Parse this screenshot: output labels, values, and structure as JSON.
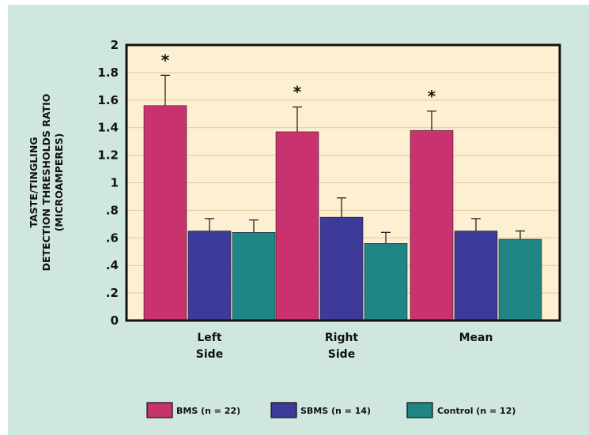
{
  "chart_data": {
    "type": "bar",
    "ylabel_lines": [
      "TASTE/TINGLING",
      "DETECTION THRESHOLDS RATIO",
      "(MICROAMPERES)"
    ],
    "categories": [
      [
        "Left",
        "Side"
      ],
      [
        "Right",
        "Side"
      ],
      [
        "Mean"
      ]
    ],
    "y_ticks": [
      "0",
      ".2",
      ".4",
      ".6",
      ".8",
      "1",
      "1.2",
      "1.4",
      "1.6",
      "1.8",
      "2"
    ],
    "ylim": [
      0,
      2
    ],
    "series": [
      {
        "name": "BMS (n = 22)",
        "color": "#c8336f",
        "values": [
          1.56,
          1.37,
          1.38
        ],
        "errors": [
          0.22,
          0.18,
          0.14
        ],
        "significant": [
          true,
          true,
          true
        ]
      },
      {
        "name": "SBMS (n = 14)",
        "color": "#3d3a99",
        "values": [
          0.65,
          0.75,
          0.65
        ],
        "errors": [
          0.09,
          0.14,
          0.09
        ],
        "significant": [
          false,
          false,
          false
        ]
      },
      {
        "name": "Control (n = 12)",
        "color": "#1f8585",
        "values": [
          0.64,
          0.56,
          0.59
        ],
        "errors": [
          0.09,
          0.08,
          0.06
        ],
        "significant": [
          false,
          false,
          false
        ]
      }
    ],
    "significance_marker": "*",
    "legend_position": "bottom",
    "plot_background": "#fdf0d2",
    "grid": true
  }
}
